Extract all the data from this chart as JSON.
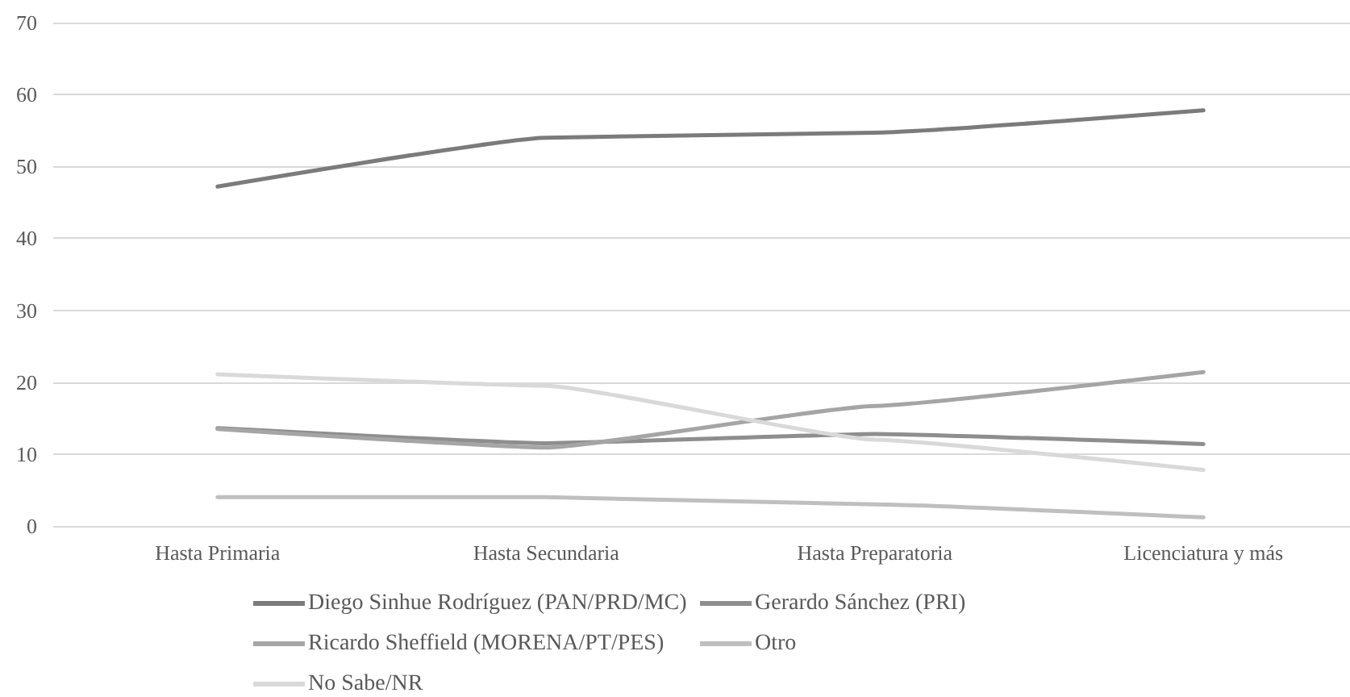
{
  "chart_data": {
    "type": "line",
    "categories": [
      "Hasta Primaria",
      "Hasta Secundaria",
      "Hasta Preparatoria",
      "Licenciatura y más"
    ],
    "series": [
      {
        "name": "Diego Sinhue Rodríguez (PAN/PRD/MC)",
        "color": "#7b7b7b",
        "values": [
          47.2,
          54,
          54.7,
          57.8
        ]
      },
      {
        "name": "Gerardo Sánchez (PRI)",
        "color": "#8e8e8e",
        "values": [
          13.6,
          11.5,
          12.8,
          11.4
        ]
      },
      {
        "name": "Ricardo Sheffield (MORENA/PT/PES)",
        "color": "#a5a5a5",
        "values": [
          13.5,
          10.9,
          16.7,
          21.4
        ]
      },
      {
        "name": "Otro",
        "color": "#bfbfbf",
        "values": [
          4,
          4,
          3,
          1.2
        ]
      },
      {
        "name": "No Sabe/NR",
        "color": "#d9d9d9",
        "values": [
          21.1,
          19.5,
          12,
          7.8
        ]
      }
    ],
    "ylim": [
      0,
      70
    ],
    "yticks": [
      0,
      10,
      20,
      30,
      40,
      50,
      60,
      70
    ],
    "grid": "y",
    "legend": "bottom",
    "marker": "none",
    "line_style": "solid"
  }
}
